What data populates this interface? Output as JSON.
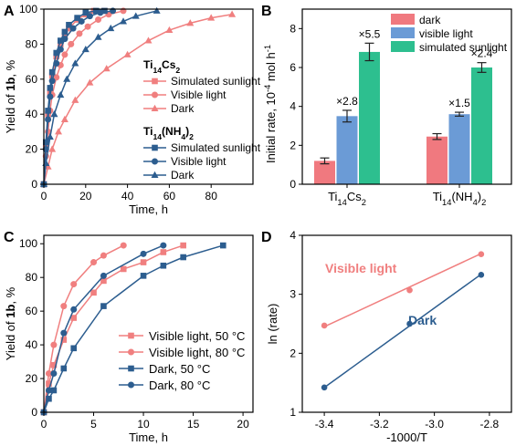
{
  "chart_data": [
    {
      "panel": "A",
      "type": "line",
      "xlabel": "Time, h",
      "ylabel_parts": [
        "Yield of ",
        "1b",
        ", %"
      ],
      "xlim": [
        0,
        100
      ],
      "ylim": [
        0,
        100
      ],
      "xticks": [
        0,
        20,
        40,
        60,
        80
      ],
      "yticks": [
        0,
        20,
        40,
        60,
        80,
        100
      ],
      "legend_groups": [
        {
          "title_main": "Ti",
          "title_sub1": "14",
          "title_mid": "Cs",
          "title_sub2": "2",
          "title_end": "",
          "entries": [
            "Simulated sunlight",
            "Visible light",
            "Dark"
          ]
        },
        {
          "title_main": "Ti",
          "title_sub1": "14",
          "title_mid": "(NH",
          "title_sub2": "4",
          "title_end": ")2",
          "entries": [
            "Simulated sunlight",
            "Visible light",
            "Dark"
          ]
        }
      ],
      "series": [
        {
          "name": "Ti14Cs2 Simulated sunlight",
          "color": "#f07f7f",
          "marker": "square",
          "points": [
            [
              0,
              0
            ],
            [
              1,
              22
            ],
            [
              2,
              40
            ],
            [
              3,
              52
            ],
            [
              4,
              62
            ],
            [
              6,
              73
            ],
            [
              8,
              80
            ],
            [
              10,
              85
            ],
            [
              12,
              89
            ],
            [
              16,
              94
            ],
            [
              20,
              97
            ],
            [
              24,
              99
            ],
            [
              29,
              99
            ]
          ]
        },
        {
          "name": "Ti14Cs2 Visible light",
          "color": "#f07f7f",
          "marker": "circle",
          "points": [
            [
              0,
              0
            ],
            [
              1,
              16
            ],
            [
              2,
              30
            ],
            [
              3,
              42
            ],
            [
              4,
              51
            ],
            [
              6,
              61
            ],
            [
              8,
              68
            ],
            [
              10,
              74
            ],
            [
              13,
              80
            ],
            [
              17,
              86
            ],
            [
              21,
              90
            ],
            [
              26,
              94
            ],
            [
              31,
              97
            ],
            [
              38,
              99
            ]
          ]
        },
        {
          "name": "Ti14Cs2 Dark",
          "color": "#f07f7f",
          "marker": "triangle",
          "points": [
            [
              0,
              0
            ],
            [
              2,
              10
            ],
            [
              4,
              20
            ],
            [
              7,
              30
            ],
            [
              10,
              37
            ],
            [
              15,
              48
            ],
            [
              22,
              58
            ],
            [
              30,
              66
            ],
            [
              40,
              74
            ],
            [
              50,
              82
            ],
            [
              60,
              88
            ],
            [
              70,
              92
            ],
            [
              80,
              95
            ],
            [
              90,
              97
            ]
          ]
        },
        {
          "name": "Ti14(NH4)2 Simulated sunlight",
          "color": "#2c5d8f",
          "marker": "square",
          "points": [
            [
              0,
              0
            ],
            [
              1,
              24
            ],
            [
              2,
              42
            ],
            [
              3,
              55
            ],
            [
              4,
              64
            ],
            [
              6,
              75
            ],
            [
              8,
              82
            ],
            [
              10,
              87
            ],
            [
              12,
              91
            ],
            [
              16,
              95
            ],
            [
              20,
              98
            ],
            [
              25,
              99
            ],
            [
              29,
              99
            ]
          ]
        },
        {
          "name": "Ti14(NH4)2 Visible light",
          "color": "#2c5d8f",
          "marker": "circle",
          "points": [
            [
              0,
              0
            ],
            [
              1,
              20
            ],
            [
              2,
              37
            ],
            [
              3,
              50
            ],
            [
              4,
              59
            ],
            [
              6,
              69
            ],
            [
              8,
              77
            ],
            [
              10,
              83
            ],
            [
              14,
              89
            ],
            [
              18,
              93
            ],
            [
              22,
              96
            ],
            [
              27,
              98
            ],
            [
              33,
              99
            ]
          ]
        },
        {
          "name": "Ti14(NH4)2 Dark",
          "color": "#2c5d8f",
          "marker": "triangle",
          "points": [
            [
              0,
              0
            ],
            [
              1,
              12
            ],
            [
              3,
              27
            ],
            [
              5,
              40
            ],
            [
              8,
              51
            ],
            [
              11,
              60
            ],
            [
              15,
              69
            ],
            [
              20,
              77
            ],
            [
              26,
              84
            ],
            [
              32,
              89
            ],
            [
              38,
              93
            ],
            [
              44,
              96
            ],
            [
              54,
              99
            ]
          ]
        }
      ]
    },
    {
      "panel": "B",
      "type": "bar",
      "ylabel_main": "Initial rate, 10",
      "ylabel_exp": "-4",
      "ylabel_unit": " mol h",
      "ylabel_exp2": "-1",
      "ylim": [
        0,
        9
      ],
      "yticks": [
        0,
        2,
        4,
        6,
        8
      ],
      "categories": [
        {
          "main": "Ti",
          "sub1": "14",
          "mid": "Cs",
          "sub2": "2",
          "end": ""
        },
        {
          "main": "Ti",
          "sub1": "14",
          "mid": "(NH",
          "sub2": "4",
          "end": ")2"
        }
      ],
      "series": [
        {
          "name": "dark",
          "color": "#f0797f",
          "values": [
            1.2,
            2.45
          ],
          "errors": [
            0.15,
            0.15
          ],
          "labels": [
            "",
            ""
          ]
        },
        {
          "name": "visible light",
          "color": "#6b9bd6",
          "values": [
            3.5,
            3.6
          ],
          "errors": [
            0.3,
            0.1
          ],
          "labels": [
            "×2.8",
            "×1.5"
          ]
        },
        {
          "name": "simulated sunlight",
          "color": "#2dbf8f",
          "values": [
            6.8,
            6.0
          ],
          "errors": [
            0.45,
            0.25
          ],
          "labels": [
            "×5.5",
            "×2.4"
          ]
        }
      ]
    },
    {
      "panel": "C",
      "type": "line",
      "xlabel": "Time, h",
      "ylabel_parts": [
        "Yield of ",
        "1b",
        ", %"
      ],
      "xlim": [
        0,
        21
      ],
      "ylim": [
        0,
        105
      ],
      "xticks": [
        0,
        5,
        10,
        15,
        20
      ],
      "yticks": [
        0,
        20,
        40,
        60,
        80,
        100
      ],
      "legend": [
        "Visible light, 50 °C",
        "Visible light, 80 °C",
        "Dark, 50 °C",
        "Dark, 80 °C"
      ],
      "series": [
        {
          "name": "Visible light, 50 °C",
          "color": "#f07f7f",
          "marker": "square",
          "points": [
            [
              0,
              0
            ],
            [
              0.5,
              17
            ],
            [
              1,
              28
            ],
            [
              2,
              43
            ],
            [
              3,
              56
            ],
            [
              5,
              71
            ],
            [
              6,
              78
            ],
            [
              8,
              85
            ],
            [
              10,
              89
            ],
            [
              12,
              95
            ],
            [
              14,
              99
            ]
          ]
        },
        {
          "name": "Visible light, 80 °C",
          "color": "#f07f7f",
          "marker": "circle",
          "points": [
            [
              0,
              0
            ],
            [
              0.5,
              23
            ],
            [
              1,
              40
            ],
            [
              2,
              63
            ],
            [
              3,
              76
            ],
            [
              5,
              89
            ],
            [
              6,
              93
            ],
            [
              8,
              99
            ]
          ]
        },
        {
          "name": "Dark, 50 °C",
          "color": "#2c5d8f",
          "marker": "square",
          "points": [
            [
              0,
              0
            ],
            [
              0.5,
              8
            ],
            [
              1,
              13
            ],
            [
              2,
              26
            ],
            [
              3,
              38
            ],
            [
              6,
              63
            ],
            [
              10,
              81
            ],
            [
              12,
              87
            ],
            [
              14,
              92
            ],
            [
              18,
              99
            ]
          ]
        },
        {
          "name": "Dark, 80 °C",
          "color": "#2c5d8f",
          "marker": "circle",
          "points": [
            [
              0,
              0
            ],
            [
              0.5,
              13
            ],
            [
              1,
              23
            ],
            [
              2,
              47
            ],
            [
              3,
              61
            ],
            [
              6,
              81
            ],
            [
              10,
              94
            ],
            [
              12,
              99
            ]
          ]
        }
      ]
    },
    {
      "panel": "D",
      "type": "scatter",
      "xlabel": "-1000/T",
      "ylabel": "ln (rate)",
      "xlim": [
        -3.48,
        -2.72
      ],
      "ylim": [
        1,
        4
      ],
      "xticks": [
        -3.4,
        -3.2,
        -3.0,
        -2.8
      ],
      "xtick_labels": [
        "-3.4",
        "-3.2",
        "-3.0",
        "-2.8"
      ],
      "yticks": [
        1,
        2,
        3,
        4
      ],
      "series": [
        {
          "name": "Visible light",
          "color": "#f07f7f",
          "points": [
            [
              -3.4,
              2.47
            ],
            [
              -3.09,
              3.07
            ],
            [
              -2.83,
              3.68
            ]
          ],
          "fit": [
            [
              -3.4,
              2.45
            ],
            [
              -2.83,
              3.69
            ]
          ]
        },
        {
          "name": "Dark",
          "color": "#2c5d8f",
          "points": [
            [
              -3.4,
              1.42
            ],
            [
              -3.09,
              2.5
            ],
            [
              -2.83,
              3.33
            ]
          ],
          "fit": [
            [
              -3.4,
              1.42
            ],
            [
              -2.83,
              3.34
            ]
          ]
        }
      ]
    }
  ],
  "panel_letters": [
    "A",
    "B",
    "C",
    "D"
  ]
}
